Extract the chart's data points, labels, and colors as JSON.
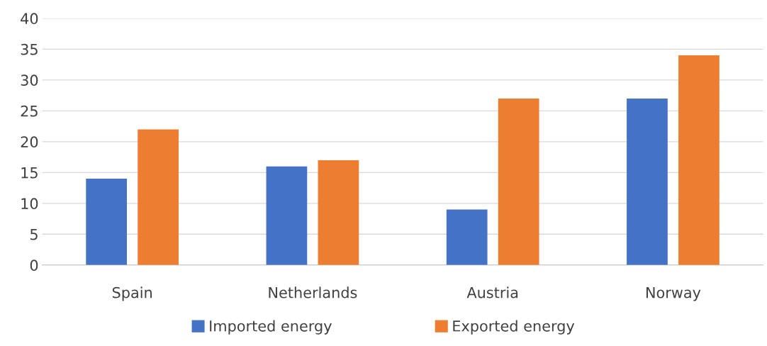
{
  "chart_data": {
    "type": "bar",
    "categories": [
      "Spain",
      "Netherlands",
      "Austria",
      "Norway"
    ],
    "series": [
      {
        "name": "Imported energy",
        "color": "#4472c4",
        "values": [
          14,
          16,
          9,
          27
        ]
      },
      {
        "name": "Exported energy",
        "color": "#ed7d31",
        "values": [
          22,
          17,
          27,
          34
        ]
      }
    ],
    "ylim": [
      0,
      40
    ],
    "yticks": [
      0,
      5,
      10,
      15,
      20,
      25,
      30,
      35,
      40
    ],
    "grid": "y",
    "legend": "bottom"
  }
}
